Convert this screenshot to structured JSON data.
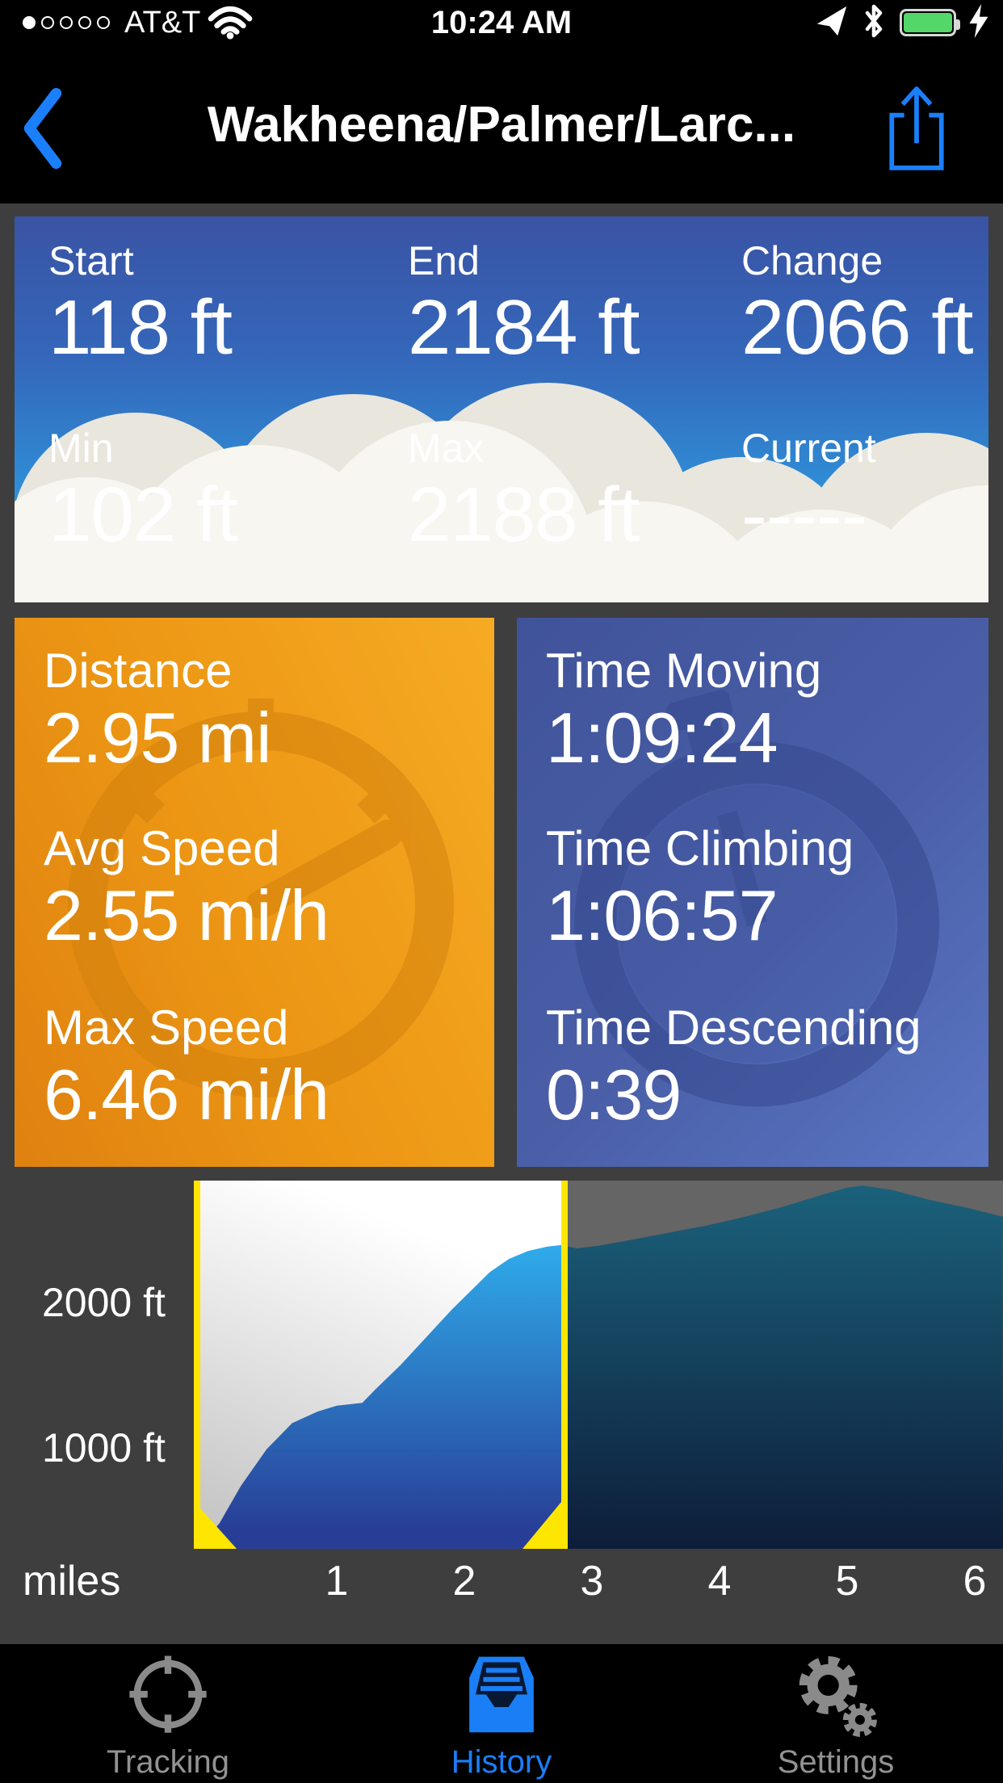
{
  "status_bar": {
    "carrier": "AT&T",
    "time": "10:24 AM",
    "signal": {
      "filled": 1,
      "total": 5
    },
    "battery_color": "#53d769"
  },
  "nav_bar": {
    "title": "Wakheena/Palmer/Larc...",
    "accent_color": "#1b7ffb"
  },
  "elevation_stats": {
    "rows": [
      {
        "cells": [
          {
            "label": "Start",
            "value": "118 ft"
          },
          {
            "label": "End",
            "value": "2184 ft"
          },
          {
            "label": "Change",
            "value": "2066 ft"
          }
        ]
      },
      {
        "cells": [
          {
            "label": "Min",
            "value": "102 ft"
          },
          {
            "label": "Max",
            "value": "2188 ft"
          },
          {
            "label": "Current",
            "value": "-----"
          }
        ]
      }
    ]
  },
  "tiles": {
    "distance": {
      "rows": [
        {
          "label": "Distance",
          "value": "2.95 mi"
        },
        {
          "label": "Avg Speed",
          "value": "2.55 mi/h"
        },
        {
          "label": "Max Speed",
          "value": "6.46 mi/h"
        }
      ],
      "accent": "#ec9614"
    },
    "time": {
      "rows": [
        {
          "label": "Time Moving",
          "value": "1:09:24"
        },
        {
          "label": "Time Climbing",
          "value": "1:06:57"
        },
        {
          "label": "Time Descending",
          "value": "0:39"
        }
      ],
      "accent": "#4a5fa8"
    }
  },
  "chart_data": {
    "type": "area",
    "xlabel": "miles",
    "y_tick_labels": [
      "2000 ft",
      "1000 ft"
    ],
    "x_ticks": [
      1,
      2,
      3,
      4,
      5,
      6
    ],
    "x_range_mi": [
      0,
      6.2
    ],
    "selection_mi": [
      0,
      2.76
    ],
    "points": [
      [
        -0.07,
        330
      ],
      [
        0.08,
        480
      ],
      [
        0.25,
        740
      ],
      [
        0.45,
        990
      ],
      [
        0.65,
        1170
      ],
      [
        0.85,
        1250
      ],
      [
        1.0,
        1290
      ],
      [
        1.1,
        1300
      ],
      [
        1.2,
        1310
      ],
      [
        1.3,
        1400
      ],
      [
        1.5,
        1570
      ],
      [
        1.7,
        1760
      ],
      [
        1.9,
        1950
      ],
      [
        2.05,
        2080
      ],
      [
        2.2,
        2210
      ],
      [
        2.35,
        2300
      ],
      [
        2.5,
        2355
      ],
      [
        2.65,
        2385
      ],
      [
        2.76,
        2395
      ],
      [
        2.88,
        2372
      ],
      [
        3.05,
        2390
      ],
      [
        3.3,
        2430
      ],
      [
        3.6,
        2480
      ],
      [
        3.9,
        2530
      ],
      [
        4.2,
        2590
      ],
      [
        4.5,
        2660
      ],
      [
        4.8,
        2740
      ],
      [
        5.0,
        2790
      ],
      [
        5.12,
        2805
      ],
      [
        5.35,
        2775
      ],
      [
        5.65,
        2705
      ],
      [
        5.95,
        2650
      ],
      [
        6.22,
        2590
      ]
    ],
    "colors": {
      "selection_border": "#ffe600",
      "selected_bg_top": "#ffffff",
      "selected_bg_bottom": "#c7c7c7",
      "selected_fill_top": "#2fa9e9",
      "selected_fill_bottom": "#283e96",
      "unselected_bg": "#656565",
      "unselected_fill_top": "#1b617b",
      "unselected_fill_bottom": "#0d1d39",
      "axis_text": "#ffffff"
    }
  },
  "tab_bar": {
    "items": [
      {
        "label": "Tracking",
        "active": false
      },
      {
        "label": "History",
        "active": true
      },
      {
        "label": "Settings",
        "active": false
      }
    ],
    "active_color": "#1a7ef7",
    "inactive_color": "#929292"
  }
}
